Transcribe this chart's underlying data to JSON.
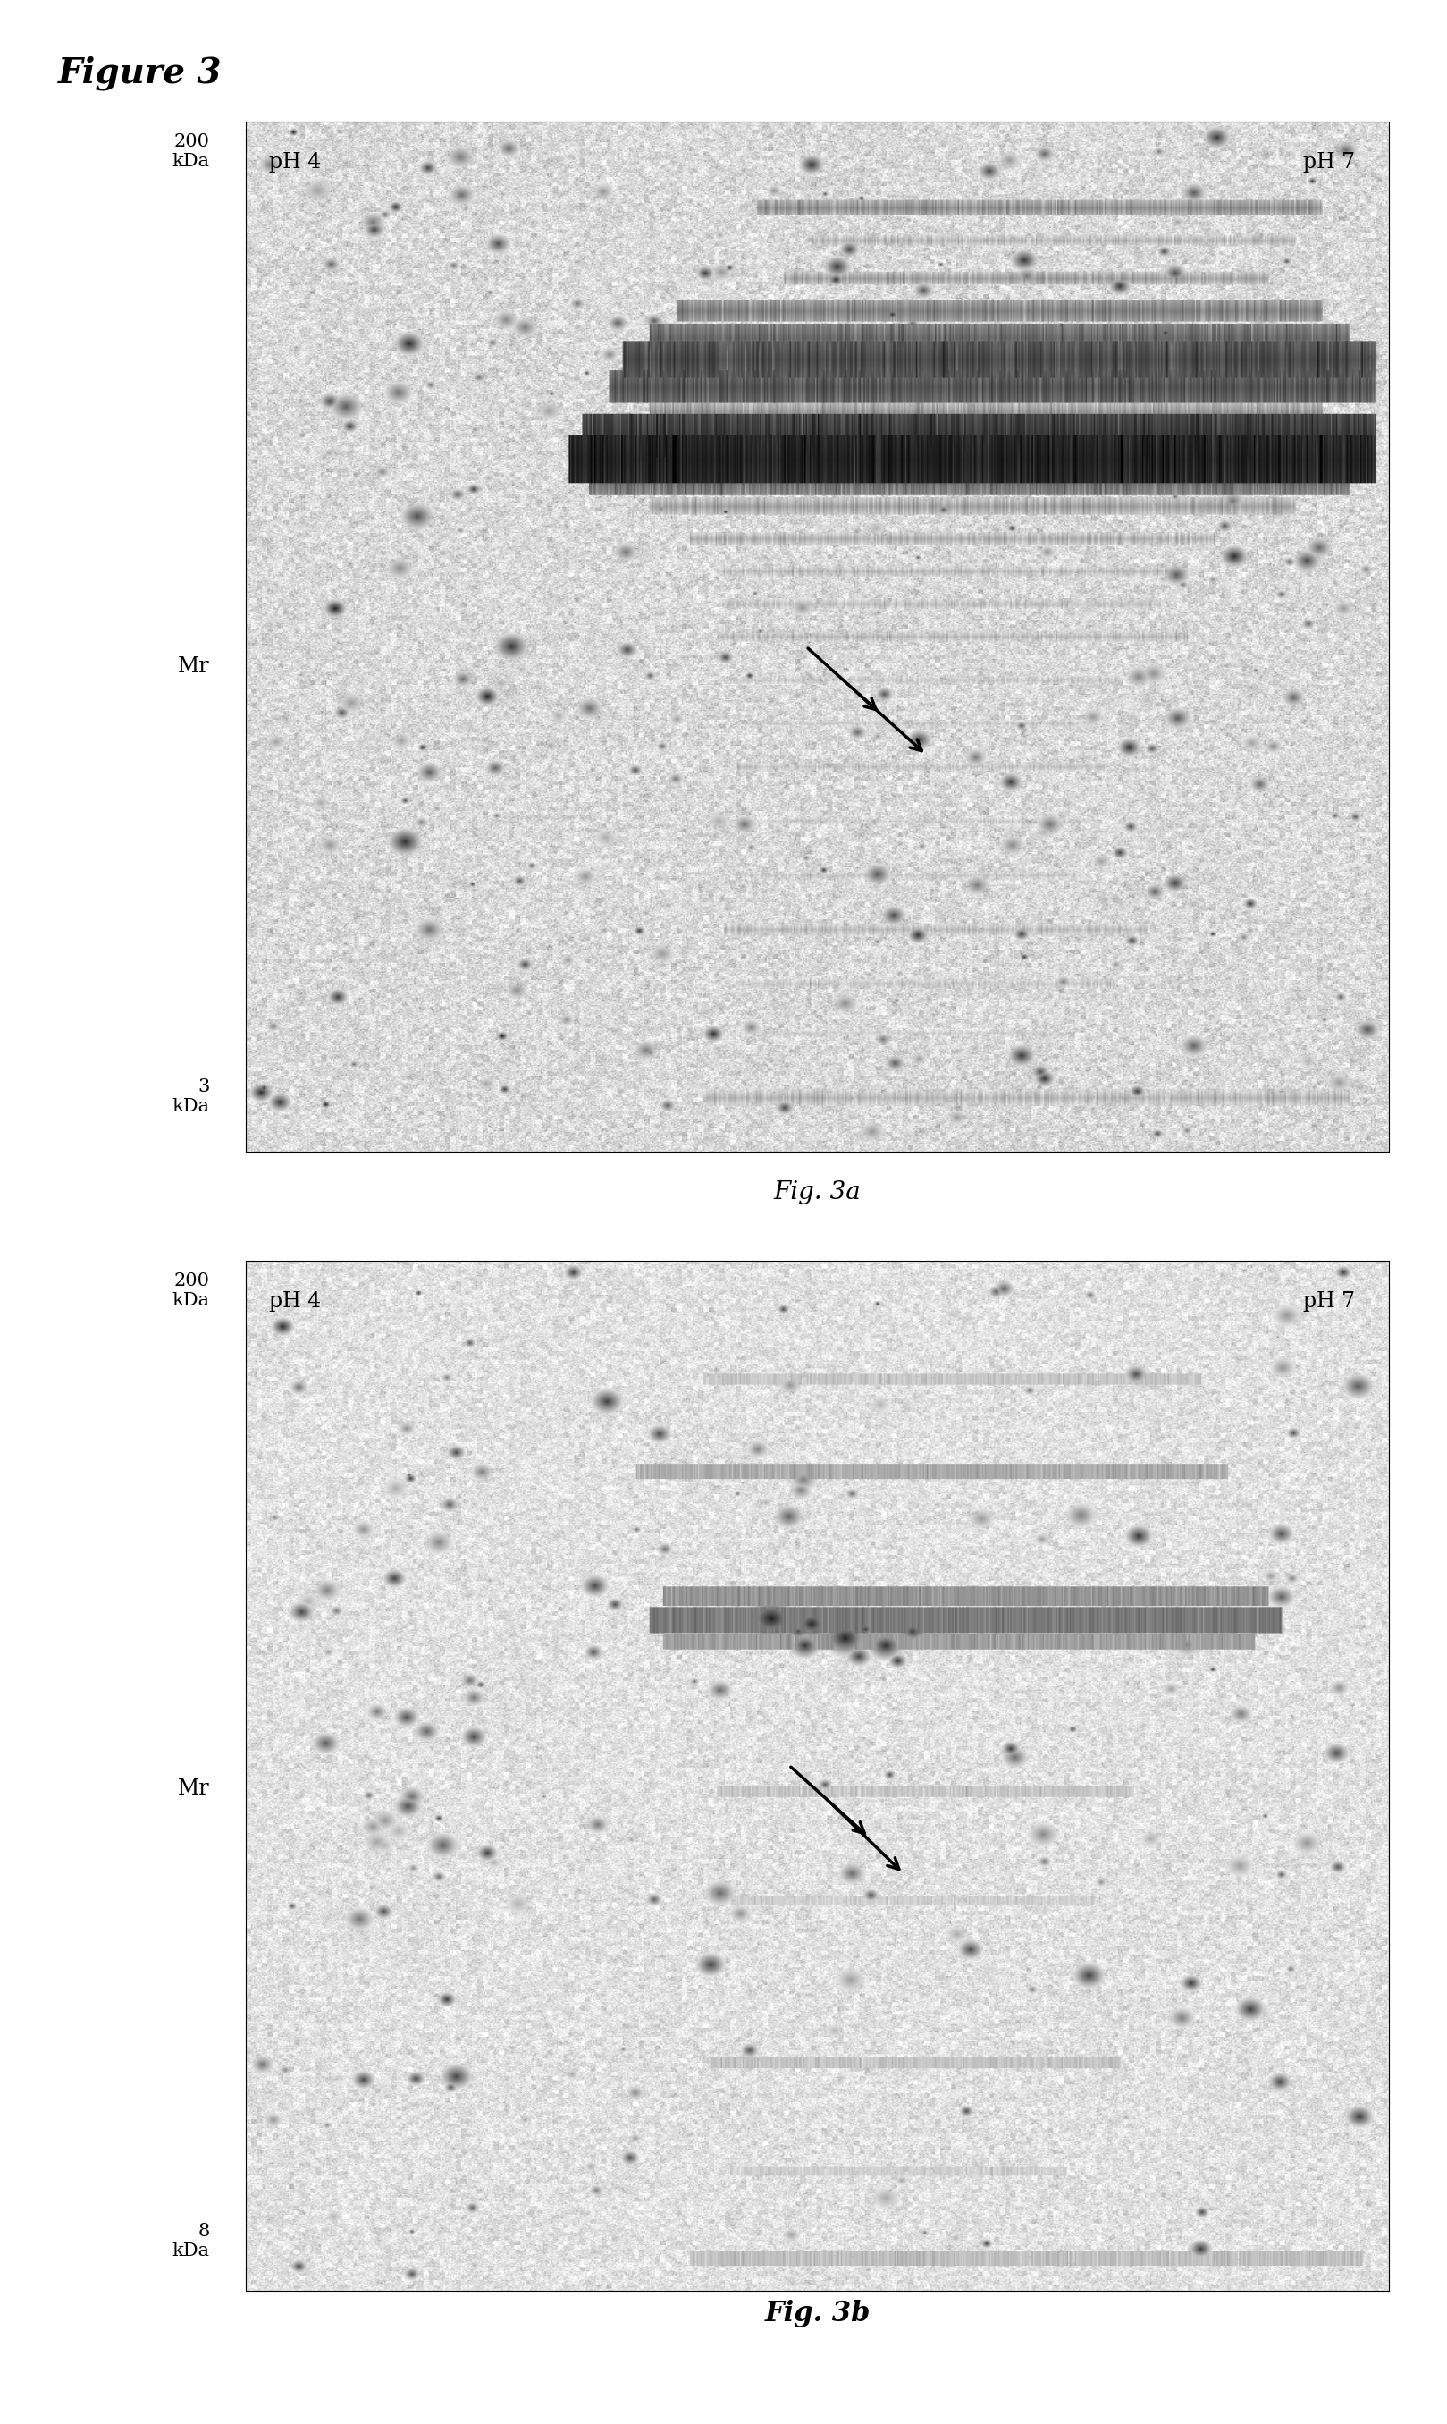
{
  "title": "Figure 3",
  "title_fontsize": 28,
  "fig_width": 16.19,
  "fig_height": 27.11,
  "background_color": "#ffffff",
  "panel_a": {
    "label": "Fig. 3a",
    "ph4_label": "pH 4",
    "ph7_label": "pH 7",
    "top_label": "200\nkDa",
    "mid_label": "Mr",
    "bot_label": "3\nkDa"
  },
  "panel_b": {
    "label": "Fig. 3b",
    "ph4_label": "pH 4",
    "ph7_label": "pH 7",
    "top_label": "200\nkDa",
    "mid_label": "Mr",
    "bot_label": "8\nkDa"
  }
}
